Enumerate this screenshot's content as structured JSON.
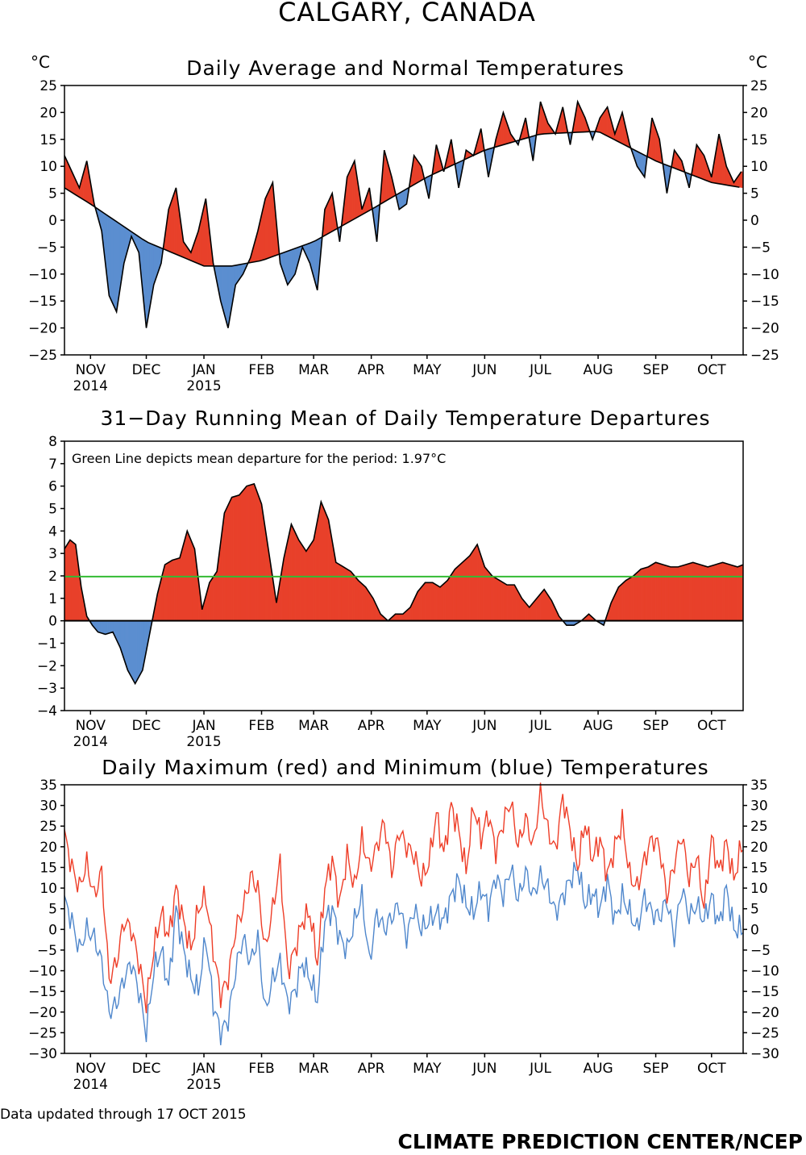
{
  "title": "CALGARY, CANADA",
  "footer": {
    "updated": "Data updated through 17 OCT 2015",
    "credit": "CLIMATE PREDICTION CENTER/NCEP"
  },
  "colors": {
    "above": "#e8402a",
    "below": "#5b8ed0",
    "max_line": "#ee3e28",
    "min_line": "#4f87cc",
    "mean_line": "#33bb33",
    "axis": "#000000"
  },
  "months": [
    "NOV",
    "DEC",
    "JAN",
    "FEB",
    "MAR",
    "APR",
    "MAY",
    "JUN",
    "JUL",
    "AUG",
    "SEP",
    "OCT"
  ],
  "month_years": [
    "2014",
    "",
    "2015",
    "",
    "",
    "",
    "",
    "",
    "",
    "",
    "",
    ""
  ],
  "chart_data": [
    {
      "type": "area",
      "title": "Daily Average and Normal Temperatures",
      "ylabel_left": "°C",
      "ylabel_right": "°C",
      "ylim": [
        -25,
        25
      ],
      "yticks": [
        25,
        20,
        15,
        10,
        5,
        0,
        -5,
        -10,
        -15,
        -20,
        -25
      ],
      "ytick_labels": [
        "25",
        "20",
        "15",
        "10",
        "5",
        "0",
        "−5",
        "−10",
        "−15",
        "−20",
        "−25"
      ],
      "xlim_day": [
        0,
        365
      ],
      "month_tick_days": [
        14,
        44,
        75,
        106,
        134,
        165,
        195,
        226,
        256,
        287,
        318,
        348
      ],
      "series": [
        {
          "name": "Normal",
          "x_day": [
            0,
            14,
            44,
            75,
            90,
            106,
            134,
            165,
            195,
            226,
            256,
            287,
            318,
            348,
            365
          ],
          "values": [
            6,
            3,
            -4,
            -8.5,
            -8.5,
            -7.5,
            -4,
            2,
            8,
            13,
            16,
            16.5,
            11,
            7,
            6
          ]
        },
        {
          "name": "Daily Average",
          "x_day": [
            0,
            4,
            8,
            12,
            16,
            20,
            24,
            28,
            32,
            36,
            40,
            44,
            48,
            52,
            56,
            60,
            64,
            68,
            72,
            76,
            80,
            84,
            88,
            92,
            96,
            100,
            104,
            108,
            112,
            116,
            120,
            124,
            128,
            132,
            136,
            140,
            144,
            148,
            152,
            156,
            160,
            164,
            168,
            172,
            176,
            180,
            184,
            188,
            192,
            196,
            200,
            204,
            208,
            212,
            216,
            220,
            224,
            228,
            232,
            236,
            240,
            244,
            248,
            252,
            256,
            260,
            264,
            268,
            272,
            276,
            280,
            284,
            288,
            292,
            296,
            300,
            304,
            308,
            312,
            316,
            320,
            324,
            328,
            332,
            336,
            340,
            344,
            348,
            352,
            356,
            360,
            364
          ],
          "values": [
            12,
            9,
            6,
            11,
            3,
            -2,
            -14,
            -17,
            -8,
            -3,
            -6,
            -20,
            -12,
            -8,
            2,
            6,
            -4,
            -6,
            -2,
            4,
            -8,
            -15,
            -20,
            -12,
            -10,
            -7,
            -2,
            4,
            7,
            -8,
            -12,
            -10,
            -5,
            -8,
            -13,
            2,
            5,
            -4,
            8,
            11,
            2,
            6,
            -4,
            13,
            8,
            2,
            3,
            12,
            10,
            4,
            14,
            9,
            15,
            6,
            13,
            12,
            17,
            8,
            15,
            20,
            16,
            14,
            19,
            11,
            22,
            18,
            16,
            21,
            14,
            22,
            19,
            15,
            19,
            21,
            16,
            20,
            14,
            10,
            8,
            19,
            15,
            5,
            13,
            11,
            6,
            14,
            12,
            8,
            16,
            10,
            7,
            9
          ]
        }
      ]
    },
    {
      "type": "area",
      "title": "31−Day Running Mean of Daily Temperature Departures",
      "annotation": "Green Line depicts mean departure for the period: 1.97°C",
      "mean_departure": 1.97,
      "ylim": [
        -4,
        8
      ],
      "yticks": [
        8,
        7,
        6,
        5,
        4,
        3,
        2,
        1,
        0,
        -1,
        -2,
        -3,
        -4
      ],
      "ytick_labels": [
        "8",
        "7",
        "6",
        "5",
        "4",
        "3",
        "2",
        "1",
        "0",
        "−1",
        "−2",
        "−3",
        "−4"
      ],
      "xlim_day": [
        0,
        365
      ],
      "month_tick_days": [
        14,
        44,
        75,
        106,
        134,
        165,
        195,
        226,
        256,
        287,
        318,
        348
      ],
      "x_day": [
        0,
        3,
        6,
        9,
        12,
        15,
        18,
        22,
        26,
        30,
        34,
        38,
        42,
        46,
        50,
        54,
        58,
        62,
        66,
        70,
        74,
        78,
        82,
        86,
        90,
        94,
        98,
        102,
        106,
        110,
        114,
        118,
        122,
        126,
        130,
        134,
        138,
        142,
        146,
        150,
        154,
        158,
        162,
        166,
        170,
        174,
        178,
        182,
        186,
        190,
        194,
        198,
        202,
        206,
        210,
        214,
        218,
        222,
        226,
        230,
        234,
        238,
        242,
        246,
        250,
        254,
        258,
        262,
        266,
        270,
        274,
        278,
        282,
        286,
        290,
        294,
        298,
        302,
        306,
        310,
        314,
        318,
        322,
        326,
        330,
        334,
        338,
        342,
        346,
        350,
        354,
        358,
        362,
        365
      ],
      "values": [
        3.2,
        3.6,
        3.4,
        1.5,
        0.2,
        -0.2,
        -0.5,
        -0.6,
        -0.5,
        -1.2,
        -2.2,
        -2.8,
        -2.2,
        -0.5,
        1.2,
        2.5,
        2.7,
        2.8,
        4,
        3.2,
        0.5,
        1.7,
        2.2,
        4.8,
        5.5,
        5.6,
        6,
        6.1,
        5.2,
        3,
        0.8,
        2.8,
        4.3,
        3.6,
        3.1,
        3.6,
        5.3,
        4.5,
        2.6,
        2.4,
        2.2,
        1.8,
        1.5,
        1.0,
        0.3,
        0,
        0.3,
        0.3,
        0.6,
        1.3,
        1.7,
        1.7,
        1.5,
        1.8,
        2.3,
        2.6,
        2.9,
        3.4,
        2.4,
        2.0,
        1.8,
        1.6,
        1.6,
        1.0,
        0.6,
        1.0,
        1.4,
        0.9,
        0.2,
        -0.2,
        -0.2,
        0.0,
        0.3,
        0.0,
        -0.2,
        0.8,
        1.5,
        1.8,
        2.0,
        2.3,
        2.4,
        2.6,
        2.5,
        2.4,
        2.4,
        2.5,
        2.6,
        2.5,
        2.4,
        2.5,
        2.6,
        2.5,
        2.4,
        2.5
      ]
    },
    {
      "type": "line",
      "title": "Daily Maximum (red) and Minimum (blue) Temperatures",
      "ylim": [
        -30,
        35
      ],
      "yticks": [
        35,
        30,
        25,
        20,
        15,
        10,
        5,
        0,
        -5,
        -10,
        -15,
        -20,
        -25,
        -30
      ],
      "ytick_labels": [
        "35",
        "30",
        "25",
        "20",
        "15",
        "10",
        "5",
        "0",
        "−5",
        "−10",
        "−15",
        "−20",
        "−25",
        "−30"
      ],
      "xlim_day": [
        0,
        365
      ],
      "month_tick_days": [
        14,
        44,
        75,
        106,
        134,
        165,
        195,
        226,
        256,
        287,
        318,
        348
      ],
      "series": [
        {
          "name": "Maximum (red)",
          "x_day": [
            0,
            4,
            8,
            12,
            16,
            20,
            24,
            28,
            32,
            36,
            40,
            44,
            48,
            52,
            56,
            60,
            64,
            68,
            72,
            76,
            80,
            84,
            88,
            92,
            96,
            100,
            104,
            108,
            112,
            116,
            120,
            124,
            128,
            132,
            136,
            140,
            144,
            148,
            152,
            156,
            160,
            164,
            168,
            172,
            176,
            180,
            184,
            188,
            192,
            196,
            200,
            204,
            208,
            212,
            216,
            220,
            224,
            228,
            232,
            236,
            240,
            244,
            248,
            252,
            256,
            260,
            264,
            268,
            272,
            276,
            280,
            284,
            288,
            292,
            296,
            300,
            304,
            308,
            312,
            316,
            320,
            324,
            328,
            332,
            336,
            340,
            344,
            348,
            352,
            356,
            360,
            364
          ],
          "values": [
            23,
            15,
            10,
            16,
            8,
            14,
            -12,
            -8,
            2,
            0,
            -8,
            -18,
            -5,
            4,
            -2,
            10,
            2,
            -5,
            5,
            8,
            -5,
            -16,
            -12,
            0,
            5,
            13,
            10,
            -5,
            5,
            16,
            -10,
            -5,
            2,
            4,
            -8,
            10,
            17,
            6,
            18,
            10,
            22,
            15,
            20,
            26,
            14,
            24,
            20,
            18,
            12,
            16,
            28,
            18,
            30,
            24,
            14,
            30,
            22,
            28,
            19,
            26,
            31,
            20,
            27,
            20,
            33,
            24,
            19,
            32,
            24,
            15,
            26,
            17,
            22,
            13,
            20,
            26,
            13,
            10,
            17,
            22,
            20,
            8,
            16,
            23,
            12,
            18,
            5,
            22,
            14,
            21,
            12,
            20
          ]
        },
        {
          "name": "Minimum (blue)",
          "x_day": [
            0,
            4,
            8,
            12,
            16,
            20,
            24,
            28,
            32,
            36,
            40,
            44,
            48,
            52,
            56,
            60,
            64,
            68,
            72,
            76,
            80,
            84,
            88,
            92,
            96,
            100,
            104,
            108,
            112,
            116,
            120,
            124,
            128,
            132,
            136,
            140,
            144,
            148,
            152,
            156,
            160,
            164,
            168,
            172,
            176,
            180,
            184,
            188,
            192,
            196,
            200,
            204,
            208,
            212,
            216,
            220,
            224,
            228,
            232,
            236,
            240,
            244,
            248,
            252,
            256,
            260,
            264,
            268,
            272,
            276,
            280,
            284,
            288,
            292,
            296,
            300,
            304,
            308,
            312,
            316,
            320,
            324,
            328,
            332,
            336,
            340,
            344,
            348,
            352,
            356,
            360,
            364
          ],
          "values": [
            7,
            2,
            -5,
            0,
            -2,
            -8,
            -20,
            -18,
            -12,
            -8,
            -15,
            -25,
            -10,
            -5,
            -14,
            5,
            -5,
            -12,
            -15,
            -2,
            -18,
            -25,
            -22,
            -10,
            -2,
            -8,
            -2,
            -20,
            -12,
            -8,
            -18,
            -15,
            -8,
            -12,
            -17,
            2,
            5,
            -2,
            -5,
            2,
            8,
            -8,
            4,
            0,
            3,
            6,
            -2,
            5,
            0,
            2,
            4,
            2,
            8,
            12,
            6,
            4,
            10,
            5,
            13,
            8,
            15,
            7,
            14,
            8,
            13,
            10,
            4,
            8,
            12,
            15,
            6,
            9,
            5,
            12,
            2,
            8,
            4,
            0,
            8,
            4,
            3,
            7,
            -2,
            10,
            3,
            6,
            2,
            8,
            1,
            10,
            0,
            0
          ]
        }
      ]
    }
  ]
}
